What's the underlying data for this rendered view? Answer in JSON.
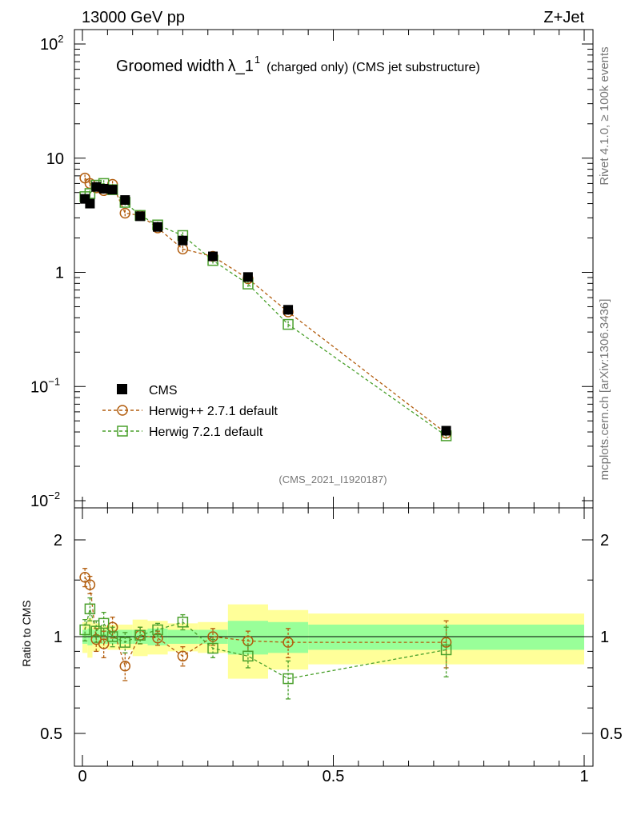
{
  "header": {
    "left": "13000 GeV pp",
    "right": "Z+Jet",
    "side_top": "Rivet 4.1.0, ≥ 100k events",
    "side_bottom": "mcplots.cern.ch [arXiv:1306.3436]"
  },
  "chart_data": {
    "type": "scatter",
    "title": {
      "main": "Groomed width",
      "lambda": "λ_1",
      "sup": "1",
      "extra": "(charged only) (CMS jet substructure)"
    },
    "analysis_tag": "(CMS_2021_I1920187)",
    "xlabel": "",
    "ylabel": "",
    "ratio_ylabel": "Ratio to CMS",
    "xlim": [
      0,
      1
    ],
    "ylim_main": [
      0.01,
      100
    ],
    "ylim_ratio": [
      0.38,
      2.35
    ],
    "yscale": "log",
    "legend_position": "center-left",
    "main_yticks": [
      {
        "value": 100,
        "base": "10",
        "exp": "2"
      },
      {
        "value": 10,
        "base": "10",
        "exp": ""
      },
      {
        "value": 1,
        "base": "1",
        "exp": ""
      },
      {
        "value": 0.1,
        "base": "10",
        "exp": "−1"
      },
      {
        "value": 0.01,
        "base": "10",
        "exp": "−2"
      }
    ],
    "ratio_yticks": [
      {
        "value": 2,
        "label": "2"
      },
      {
        "value": 1,
        "label": "1"
      },
      {
        "value": 0.5,
        "label": "0.5"
      }
    ],
    "xticks": [
      {
        "value": 0,
        "label": "0"
      },
      {
        "value": 0.5,
        "label": "0.5"
      },
      {
        "value": 1,
        "label": "1"
      }
    ],
    "bins": [
      {
        "lo": 0.0,
        "hi": 0.01
      },
      {
        "lo": 0.01,
        "hi": 0.02
      },
      {
        "lo": 0.02,
        "hi": 0.035
      },
      {
        "lo": 0.035,
        "hi": 0.05
      },
      {
        "lo": 0.05,
        "hi": 0.07
      },
      {
        "lo": 0.07,
        "hi": 0.1
      },
      {
        "lo": 0.1,
        "hi": 0.13
      },
      {
        "lo": 0.13,
        "hi": 0.17
      },
      {
        "lo": 0.17,
        "hi": 0.23
      },
      {
        "lo": 0.23,
        "hi": 0.29
      },
      {
        "lo": 0.29,
        "hi": 0.37
      },
      {
        "lo": 0.37,
        "hi": 0.45
      },
      {
        "lo": 0.45,
        "hi": 1.0
      }
    ],
    "band_inner": [
      0.05,
      0.06,
      0.05,
      0.05,
      0.05,
      0.05,
      0.05,
      0.06,
      0.05,
      0.05,
      0.12,
      0.11,
      0.09
    ],
    "band_outer": [
      0.11,
      0.14,
      0.1,
      0.08,
      0.09,
      0.09,
      0.13,
      0.12,
      0.1,
      0.11,
      0.26,
      0.21,
      0.18
    ],
    "series": [
      {
        "name": "CMS",
        "marker": "filled-square",
        "color": "#000000",
        "x": [
          0.005,
          0.015,
          0.0275,
          0.0425,
          0.06,
          0.085,
          0.115,
          0.15,
          0.2,
          0.26,
          0.33,
          0.41,
          0.725
        ],
        "y": [
          4.4,
          4.0,
          5.6,
          5.4,
          5.3,
          4.3,
          3.1,
          2.5,
          1.9,
          1.38,
          0.91,
          0.47,
          0.041
        ],
        "ratio": [
          1,
          1,
          1,
          1,
          1,
          1,
          1,
          1,
          1,
          1,
          1,
          1,
          1
        ]
      },
      {
        "name": "Herwig++ 2.7.1 default",
        "marker": "open-circle",
        "color": "#b25d0e",
        "x": [
          0.005,
          0.015,
          0.0275,
          0.0425,
          0.06,
          0.085,
          0.115,
          0.15,
          0.2,
          0.26,
          0.33,
          0.41,
          0.725
        ],
        "y": [
          6.7,
          6.0,
          5.5,
          5.2,
          5.9,
          3.3,
          3.15,
          2.45,
          1.6,
          1.38,
          0.88,
          0.45,
          0.039
        ],
        "ratio": [
          1.53,
          1.45,
          0.98,
          0.95,
          1.07,
          0.81,
          1.01,
          0.99,
          0.87,
          1.0,
          0.97,
          0.96,
          0.96
        ],
        "ratio_err": [
          0.1,
          0.09,
          0.08,
          0.09,
          0.08,
          0.08,
          0.06,
          0.05,
          0.06,
          0.06,
          0.07,
          0.1,
          0.16
        ]
      },
      {
        "name": "Herwig 7.2.1 default",
        "marker": "open-square",
        "color": "#4aa02c",
        "x": [
          0.005,
          0.015,
          0.0275,
          0.0425,
          0.06,
          0.085,
          0.115,
          0.15,
          0.2,
          0.26,
          0.33,
          0.41,
          0.725
        ],
        "y": [
          4.6,
          4.9,
          5.8,
          6.0,
          5.3,
          4.1,
          3.15,
          2.6,
          2.1,
          1.27,
          0.79,
          0.35,
          0.037
        ],
        "ratio": [
          1.05,
          1.22,
          1.04,
          1.1,
          1.0,
          0.96,
          1.01,
          1.05,
          1.11,
          0.92,
          0.87,
          0.74,
          0.91
        ],
        "ratio_err": [
          0.08,
          0.1,
          0.08,
          0.09,
          0.07,
          0.07,
          0.06,
          0.05,
          0.06,
          0.06,
          0.07,
          0.1,
          0.16
        ]
      }
    ]
  }
}
